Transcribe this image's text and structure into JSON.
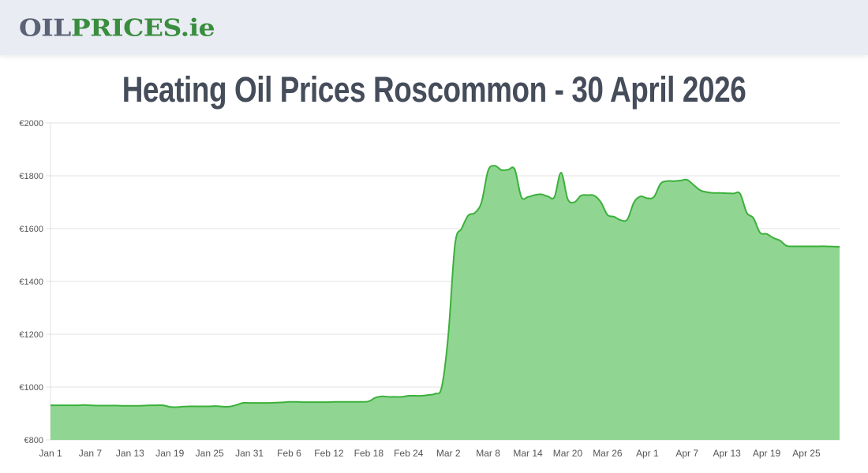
{
  "header": {
    "logo_part1": "OIL",
    "logo_part2": "PRICES.ie",
    "logo_colors": {
      "part1": "#5b6276",
      "part2": "#3a8d3e"
    },
    "background": "#e9ecf3"
  },
  "page": {
    "title": "Heating Oil Prices Roscommon - 30 April 2026"
  },
  "colors": {
    "line": "#3bb03b",
    "fill": "#90d692",
    "grid": "#e2e2e2",
    "text": "#555555"
  },
  "chart_data": {
    "type": "area",
    "title": "Heating Oil Prices Roscommon - 30 April 2026",
    "xlabel": "",
    "ylabel": "",
    "ylim": [
      800,
      2000
    ],
    "y_ticks": [
      "€800",
      "€1000",
      "€1200",
      "€1400",
      "€1600",
      "€1800",
      "€2000"
    ],
    "y_tick_values": [
      800,
      1000,
      1200,
      1400,
      1600,
      1800,
      2000
    ],
    "x_ticks": [
      "Jan 1",
      "Jan 7",
      "Jan 13",
      "Jan 19",
      "Jan 25",
      "Jan 31",
      "Feb 6",
      "Feb 12",
      "Feb 18",
      "Feb 24",
      "Mar 2",
      "Mar 8",
      "Mar 14",
      "Mar 20",
      "Mar 26",
      "Apr 1",
      "Apr 7",
      "Apr 13",
      "Apr 19",
      "Apr 25"
    ],
    "x_tick_day_index": [
      0,
      6,
      12,
      18,
      24,
      30,
      36,
      42,
      48,
      54,
      60,
      66,
      72,
      78,
      84,
      90,
      96,
      102,
      108,
      114
    ],
    "grid": true,
    "legend": "none",
    "x_start": "Jan 1",
    "x_end": "Apr 30",
    "series": [
      {
        "name": "Heating Oil Price (€)",
        "values": [
          931,
          931,
          931,
          931,
          931,
          932,
          931,
          930,
          930,
          930,
          930,
          929,
          929,
          929,
          930,
          931,
          931,
          931,
          925,
          924,
          926,
          927,
          927,
          927,
          927,
          928,
          926,
          926,
          932,
          940,
          940,
          940,
          940,
          940,
          941,
          942,
          944,
          944,
          943,
          943,
          943,
          943,
          943,
          944,
          944,
          944,
          944,
          944,
          946,
          960,
          965,
          963,
          963,
          963,
          967,
          967,
          967,
          970,
          975,
          1000,
          1200,
          1540,
          1600,
          1650,
          1660,
          1700,
          1820,
          1838,
          1822,
          1823,
          1825,
          1720,
          1720,
          1727,
          1730,
          1722,
          1720,
          1812,
          1712,
          1700,
          1725,
          1727,
          1725,
          1700,
          1652,
          1645,
          1632,
          1635,
          1700,
          1722,
          1715,
          1720,
          1770,
          1780,
          1780,
          1782,
          1785,
          1765,
          1745,
          1738,
          1735,
          1735,
          1734,
          1733,
          1732,
          1660,
          1640,
          1585,
          1580,
          1565,
          1555,
          1535,
          1533,
          1533,
          1533,
          1533,
          1533,
          1533,
          1532,
          1531
        ]
      }
    ]
  }
}
